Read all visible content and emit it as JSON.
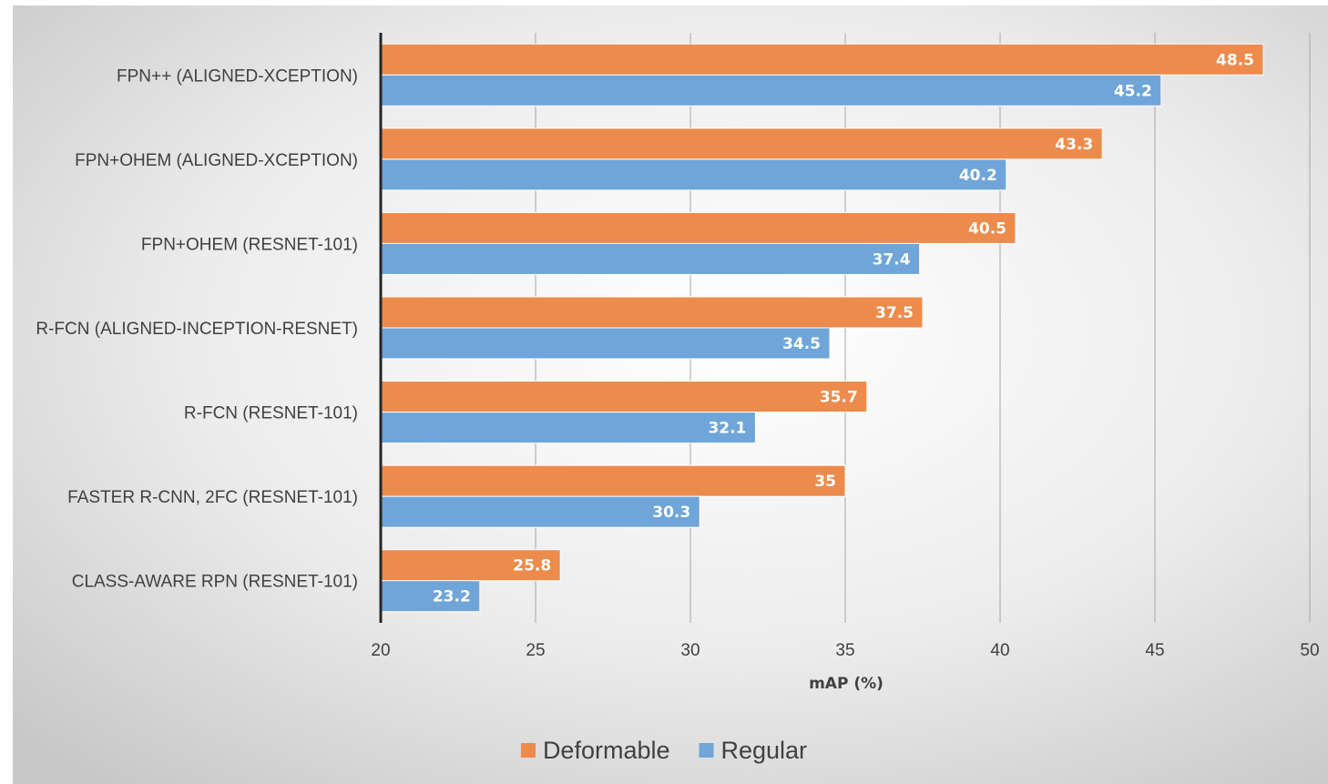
{
  "chart_data": {
    "type": "bar",
    "orientation": "horizontal",
    "categories": [
      "FPN++ (ALIGNED-XCEPTION)",
      "FPN+OHEM (ALIGNED-XCEPTION)",
      "FPN+OHEM (RESNET-101)",
      "R-FCN (ALIGNED-INCEPTION-RESNET)",
      "R-FCN (RESNET-101)",
      "FASTER R-CNN, 2FC (RESNET-101)",
      "CLASS-AWARE RPN (RESNET-101)"
    ],
    "series": [
      {
        "name": "Deformable",
        "color": "#ED8B4C",
        "values": [
          48.5,
          43.3,
          40.5,
          37.5,
          35.7,
          35,
          25.8
        ],
        "labels": [
          "48.5",
          "43.3",
          "40.5",
          "37.5",
          "35.7",
          "35",
          "25.8"
        ]
      },
      {
        "name": "Regular",
        "color": "#6FA5D8",
        "values": [
          45.2,
          40.2,
          37.4,
          34.5,
          32.1,
          30.3,
          23.2
        ],
        "labels": [
          "45.2",
          "40.2",
          "37.4",
          "34.5",
          "32.1",
          "30.3",
          "23.2"
        ]
      }
    ],
    "xlabel": "mAP (%)",
    "ylabel": "",
    "xlim": [
      20,
      50
    ],
    "xticks": [
      "20",
      "25",
      "30",
      "35",
      "40",
      "45",
      "50"
    ],
    "grid": true,
    "legend_position": "bottom",
    "background": "radial-gradient"
  }
}
